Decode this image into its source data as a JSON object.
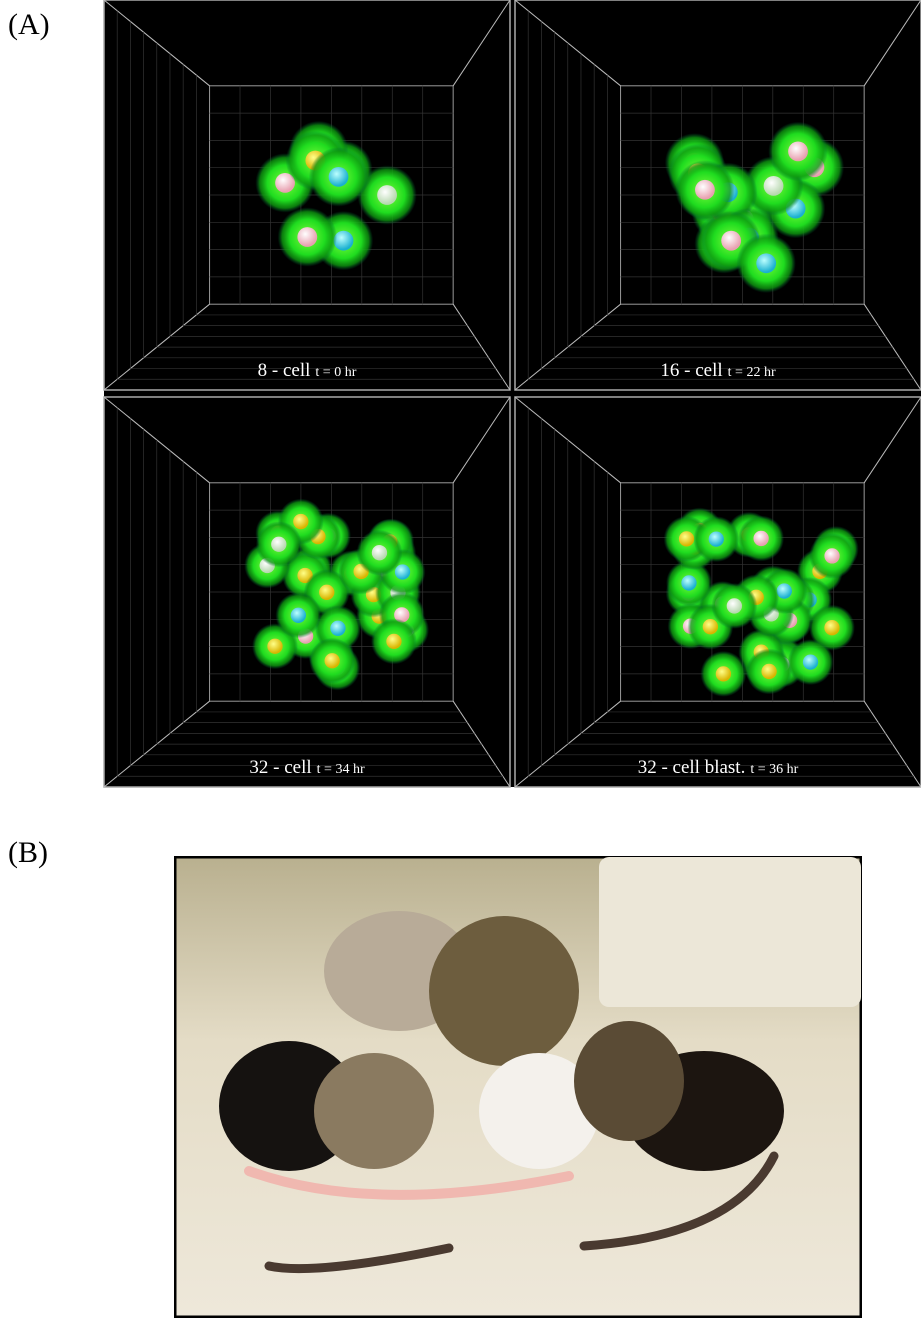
{
  "panel_a": {
    "label": "(A)",
    "frames": [
      {
        "stage": "8 - cell",
        "time": "t = 0 hr"
      },
      {
        "stage": "16 - cell",
        "time": "t = 22 hr"
      },
      {
        "stage": "32 - cell",
        "time": "t = 34 hr"
      },
      {
        "stage": "32 - cell blast.",
        "time": "t = 36 hr"
      }
    ]
  },
  "panel_b": {
    "label": "(B)"
  }
}
